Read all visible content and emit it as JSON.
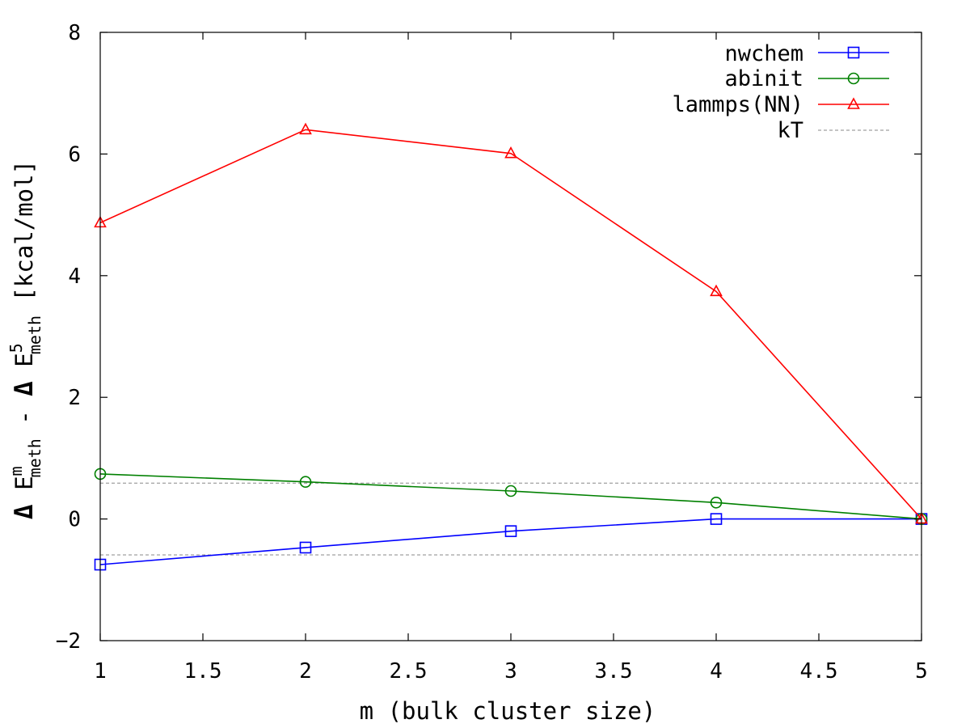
{
  "chart_data": {
    "type": "line",
    "xlabel": "m (bulk cluster size)",
    "ylabel": {
      "delta": "Δ",
      "E": "E",
      "sup_m": "m",
      "sub_meth": "meth",
      "minus": "-",
      "sup_5": "5",
      "units": "[kcal/mol]"
    },
    "xlim": [
      1,
      5
    ],
    "ylim": [
      -2,
      8
    ],
    "xticks": [
      "1",
      "1.5",
      "2",
      "2.5",
      "3",
      "3.5",
      "4",
      "4.5",
      "5"
    ],
    "xtick_values": [
      1,
      1.5,
      2,
      2.5,
      3,
      3.5,
      4,
      4.5,
      5
    ],
    "yticks": [
      "−2",
      "0",
      "2",
      "4",
      "6",
      "8"
    ],
    "ytick_values": [
      -2,
      0,
      2,
      4,
      6,
      8
    ],
    "legend_position": "top-right",
    "series": [
      {
        "name": "nwchem",
        "color": "#0000ff",
        "marker": "square",
        "x": [
          1,
          2,
          3,
          4,
          5
        ],
        "y": [
          -0.75,
          -0.47,
          -0.2,
          0.0,
          0.0
        ]
      },
      {
        "name": "abinit",
        "color": "#008000",
        "marker": "circle",
        "x": [
          1,
          2,
          3,
          4,
          5
        ],
        "y": [
          0.74,
          0.61,
          0.46,
          0.27,
          0.0
        ]
      },
      {
        "name": "lammps(NN)",
        "color": "#ff0000",
        "marker": "triangle",
        "x": [
          1,
          2,
          3,
          4,
          5
        ],
        "y": [
          4.87,
          6.4,
          6.01,
          3.74,
          0.0
        ]
      }
    ],
    "reference_lines": {
      "name": "kT",
      "color": "#888888",
      "style": "dashed",
      "values": [
        0.59,
        -0.59
      ]
    }
  }
}
